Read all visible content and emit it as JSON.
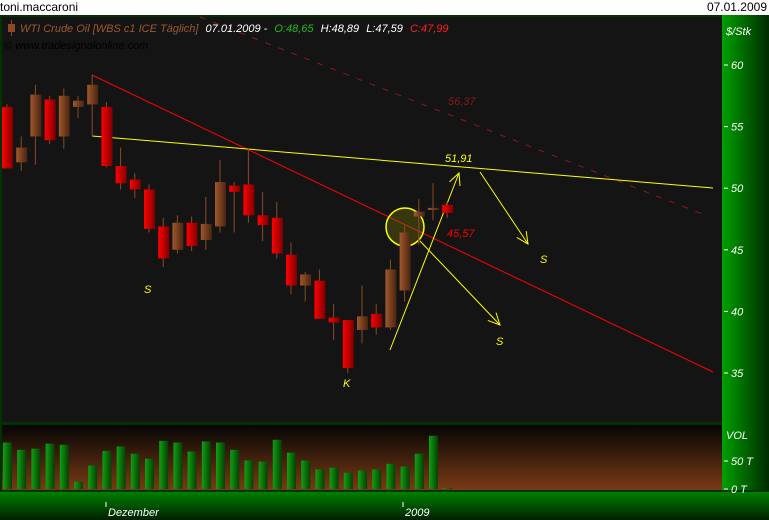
{
  "window": {
    "user": "toni.maccaroni",
    "date": "07.01.2009"
  },
  "legend": {
    "instrument": "WTI Crude Oil [WBS c1 ICE  Täglich]",
    "date": "07.01.2009 -",
    "open": "O:48,65",
    "high": "H:48,89",
    "low": "L:47,59",
    "close": "C:47,99",
    "copyright": "© www.tradesignalonline.com"
  },
  "colors": {
    "bull": "#8a4a25",
    "bear": "#ff0000",
    "volume": "#117711",
    "trend_red": "#ff0000",
    "trend_yellow": "#ffff00",
    "axis": "#006600",
    "bg": "#141414"
  },
  "chart_data": [
    {
      "type": "candlestick",
      "ylabel": "$/Stk",
      "ylim": [
        33,
        62
      ],
      "yticks": [
        35,
        40,
        45,
        50,
        55,
        60
      ],
      "xticks": [
        "Dezember",
        "2009"
      ],
      "candles": [
        [
          56.6,
          56.8,
          51.6,
          51.6
        ],
        [
          52.1,
          54.2,
          51.4,
          53.3
        ],
        [
          54.2,
          58.4,
          51.9,
          57.6
        ],
        [
          57.2,
          57.5,
          53.6,
          53.9
        ],
        [
          54.2,
          58.1,
          53.2,
          57.5
        ],
        [
          56.6,
          57.5,
          55.7,
          57.1
        ],
        [
          56.8,
          59.2,
          54.2,
          58.4
        ],
        [
          56.6,
          57.0,
          51.7,
          51.8
        ],
        [
          51.8,
          53.3,
          49.9,
          50.4
        ],
        [
          50.7,
          51.2,
          49.2,
          49.9
        ],
        [
          49.9,
          50.3,
          46.4,
          46.7
        ],
        [
          46.9,
          47.6,
          43.6,
          44.3
        ],
        [
          45.0,
          47.8,
          44.7,
          47.2
        ],
        [
          47.2,
          47.7,
          44.9,
          45.3
        ],
        [
          45.8,
          49.3,
          45.0,
          47.1
        ],
        [
          46.9,
          52.3,
          46.4,
          50.5
        ],
        [
          50.2,
          50.5,
          46.4,
          49.7
        ],
        [
          50.3,
          53.2,
          47.2,
          47.8
        ],
        [
          47.8,
          49.7,
          45.7,
          47.0
        ],
        [
          47.6,
          48.9,
          44.3,
          44.7
        ],
        [
          44.6,
          45.6,
          41.4,
          42.1
        ],
        [
          42.1,
          43.2,
          40.8,
          43.0
        ],
        [
          42.5,
          43.4,
          39.4,
          39.4
        ],
        [
          39.5,
          40.6,
          37.7,
          39.1
        ],
        [
          39.3,
          39.3,
          35.0,
          35.4
        ],
        [
          38.5,
          42.1,
          37.4,
          39.6
        ],
        [
          39.8,
          40.6,
          38.1,
          38.7
        ],
        [
          38.7,
          44.2,
          38.5,
          43.4
        ],
        [
          41.7,
          47.0,
          40.8,
          46.4
        ],
        [
          47.7,
          49.1,
          45.4,
          48.1
        ],
        [
          48.4,
          50.4,
          47.4,
          48.4
        ],
        [
          48.65,
          48.89,
          47.59,
          47.99
        ]
      ],
      "annotations": [
        {
          "text": "56,37",
          "color": "#8b1a1a"
        },
        {
          "text": "51,91",
          "color": "#ffff00"
        },
        {
          "text": "45,57",
          "color": "#ff0000"
        },
        {
          "text": "S",
          "color": "#ffff00"
        },
        {
          "text": "S",
          "color": "#ffff00"
        },
        {
          "text": "S",
          "color": "#ffff00"
        },
        {
          "text": "K",
          "color": "#ffff00"
        }
      ]
    },
    {
      "type": "bar",
      "ylabel": "VOL",
      "yticks": [
        "50 T",
        "0 T"
      ],
      "unit": "T",
      "values": [
        83,
        70,
        72,
        81,
        79,
        13,
        42,
        68,
        76,
        63,
        54,
        86,
        83,
        67,
        85,
        83,
        70,
        51,
        49,
        88,
        65,
        51,
        35,
        38,
        29,
        33,
        35,
        45,
        40,
        63,
        95,
        2
      ]
    }
  ]
}
